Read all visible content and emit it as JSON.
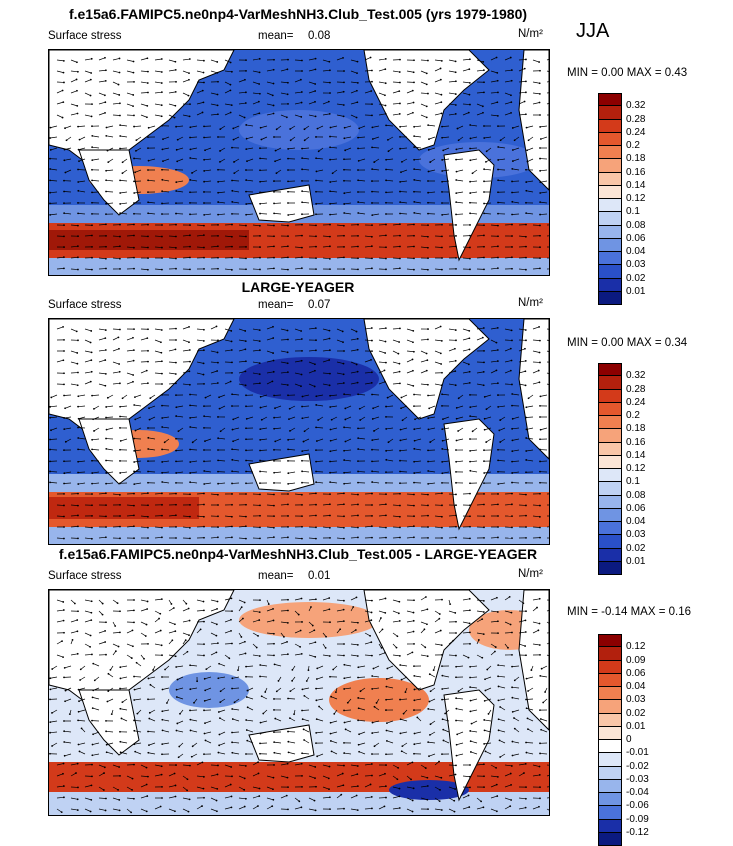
{
  "season": "JJA",
  "panels": [
    {
      "title": "f.e15a6.FAMIPC5.ne0np4-VarMeshNH3.Club_Test.005 (yrs 1979-1980)",
      "variable": "Surface stress",
      "mean_label": "mean=",
      "mean_value": "0.08",
      "units": "N/m²",
      "minmax": "MIN =   0.00 MAX =   0.43",
      "colorbar": {
        "labels": [
          "0.32",
          "0.28",
          "0.24",
          "0.2",
          "0.18",
          "0.16",
          "0.14",
          "0.12",
          "0.1",
          "0.08",
          "0.06",
          "0.04",
          "0.03",
          "0.02",
          "0.01"
        ],
        "colors": [
          "#8b0000",
          "#b2200d",
          "#d33a1a",
          "#e4582d",
          "#f08050",
          "#f6a37a",
          "#f9c6a8",
          "#fbe5d6",
          "#dde7f8",
          "#bfd2f3",
          "#98b5ec",
          "#6f94e3",
          "#4a72db",
          "#2a50c8",
          "#1a2fa8",
          "#0b1a80"
        ]
      }
    },
    {
      "title": "LARGE-YEAGER",
      "variable": "Surface stress",
      "mean_label": "mean=",
      "mean_value": "0.07",
      "units": "N/m²",
      "minmax": "MIN =   0.00 MAX =   0.34",
      "colorbar": {
        "labels": [
          "0.32",
          "0.28",
          "0.24",
          "0.2",
          "0.18",
          "0.16",
          "0.14",
          "0.12",
          "0.1",
          "0.08",
          "0.06",
          "0.04",
          "0.03",
          "0.02",
          "0.01"
        ],
        "colors": [
          "#8b0000",
          "#b2200d",
          "#d33a1a",
          "#e4582d",
          "#f08050",
          "#f6a37a",
          "#f9c6a8",
          "#fbe5d6",
          "#dde7f8",
          "#bfd2f3",
          "#98b5ec",
          "#6f94e3",
          "#4a72db",
          "#2a50c8",
          "#1a2fa8",
          "#0b1a80"
        ]
      }
    },
    {
      "title": "f.e15a6.FAMIPC5.ne0np4-VarMeshNH3.Club_Test.005 - LARGE-YEAGER",
      "variable": "Surface stress",
      "mean_label": "mean=",
      "mean_value": "0.01",
      "units": "N/m²",
      "minmax": "MIN =  -0.14 MAX =   0.16",
      "colorbar": {
        "labels": [
          "0.12",
          "0.09",
          "0.06",
          "0.04",
          "0.03",
          "0.02",
          "0.01",
          "0",
          "-0.01",
          "-0.02",
          "-0.03",
          "-0.04",
          "-0.06",
          "-0.09",
          "-0.12"
        ],
        "colors": [
          "#8b0000",
          "#b2200d",
          "#d33a1a",
          "#e4582d",
          "#f08050",
          "#f6a37a",
          "#f9c6a8",
          "#fbe5d6",
          "#ffffff",
          "#dde7f8",
          "#bfd2f3",
          "#98b5ec",
          "#6f94e3",
          "#4a72db",
          "#1a2fa8",
          "#0b1a80"
        ]
      }
    }
  ],
  "chart_data": [
    {
      "type": "heatmap",
      "title": "f.e15a6.FAMIPC5.ne0np4-VarMeshNH3.Club_Test.005 (yrs 1979-1980)",
      "variable": "Surface stress",
      "units": "N/m²",
      "season": "JJA",
      "mean": 0.08,
      "min": 0.0,
      "max": 0.43,
      "contour_levels": [
        0.01,
        0.02,
        0.03,
        0.04,
        0.06,
        0.08,
        0.1,
        0.12,
        0.14,
        0.16,
        0.18,
        0.2,
        0.24,
        0.28,
        0.32
      ]
    },
    {
      "type": "heatmap",
      "title": "LARGE-YEAGER",
      "variable": "Surface stress",
      "units": "N/m²",
      "season": "JJA",
      "mean": 0.07,
      "min": 0.0,
      "max": 0.34,
      "contour_levels": [
        0.01,
        0.02,
        0.03,
        0.04,
        0.06,
        0.08,
        0.1,
        0.12,
        0.14,
        0.16,
        0.18,
        0.2,
        0.24,
        0.28,
        0.32
      ]
    },
    {
      "type": "heatmap",
      "title": "f.e15a6.FAMIPC5.ne0np4-VarMeshNH3.Club_Test.005 - LARGE-YEAGER",
      "variable": "Surface stress",
      "units": "N/m²",
      "season": "JJA",
      "mean": 0.01,
      "min": -0.14,
      "max": 0.16,
      "contour_levels": [
        -0.12,
        -0.09,
        -0.06,
        -0.04,
        -0.03,
        -0.02,
        -0.01,
        0,
        0.01,
        0.02,
        0.03,
        0.04,
        0.06,
        0.09,
        0.12
      ]
    }
  ]
}
